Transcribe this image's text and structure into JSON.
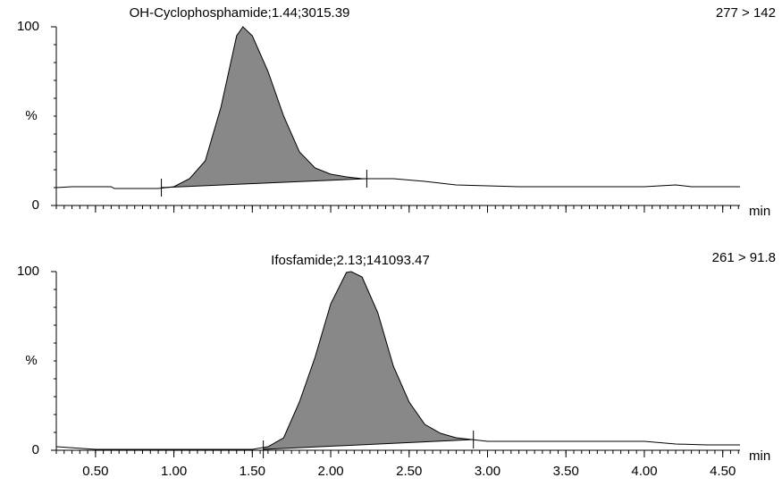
{
  "chart_data": [
    {
      "type": "line",
      "title": "OH-Cyclophosphamide;1.44;3015.39",
      "annotation": "277 > 142",
      "x_label": "min",
      "y_label": "%",
      "color": "#000000",
      "fill_color": "#888888",
      "x": [
        0.25,
        0.35,
        0.6,
        0.62,
        0.9,
        1.0,
        1.1,
        1.2,
        1.3,
        1.4,
        1.44,
        1.5,
        1.6,
        1.7,
        1.8,
        1.9,
        2.0,
        2.1,
        2.2,
        2.4,
        2.6,
        2.8,
        3.0,
        3.2,
        3.6,
        4.0,
        4.2,
        4.3,
        4.61
      ],
      "values": [
        10,
        10.5,
        10.5,
        9.5,
        9.5,
        10.5,
        15,
        25,
        55,
        95,
        100,
        95,
        75,
        50,
        30,
        21,
        17.5,
        16,
        15,
        15,
        13.5,
        11.5,
        11,
        10.5,
        10.5,
        10.5,
        11.5,
        10.5,
        10.5
      ],
      "integration": {
        "x": [
          0.92,
          2.23
        ],
        "values": [
          10,
          15
        ]
      },
      "xlim": [
        0.25,
        4.61
      ],
      "ylim": [
        0,
        100
      ],
      "yticks": [
        0,
        100
      ],
      "xticks": [
        0.5,
        1,
        1.5,
        2,
        2.5,
        3,
        3.5,
        4,
        4.5
      ]
    },
    {
      "type": "line",
      "title": "Ifosfamide;2.13;141093.47",
      "annotation": "261 > 91.8",
      "x_label": "min",
      "y_label": "%",
      "color": "#000000",
      "fill_color": "#888888",
      "x": [
        0.25,
        0.5,
        1.5,
        1.6,
        1.7,
        1.8,
        1.9,
        2.0,
        2.1,
        2.13,
        2.2,
        2.3,
        2.4,
        2.5,
        2.6,
        2.7,
        2.8,
        2.9,
        3.0,
        3.6,
        4.0,
        4.2,
        4.4,
        4.61
      ],
      "values": [
        2,
        0.5,
        0.5,
        2,
        7,
        27,
        52,
        82,
        99.5,
        100,
        97,
        77,
        47,
        27,
        14.5,
        9.5,
        7,
        6,
        5,
        5,
        5,
        3.5,
        3,
        3
      ],
      "integration": {
        "x": [
          1.57,
          2.91
        ],
        "values": [
          0.5,
          6
        ]
      },
      "xlim": [
        0.25,
        4.61
      ],
      "ylim": [
        0,
        100
      ],
      "yticks": [
        0,
        100
      ],
      "xticks": [
        {
          "value": 0.5,
          "label": "0.50"
        },
        {
          "value": 1,
          "label": "1.00"
        },
        {
          "value": 1.5,
          "label": "1.50"
        },
        {
          "value": 2,
          "label": "2.00"
        },
        {
          "value": 2.5,
          "label": "2.50"
        },
        {
          "value": 3,
          "label": "3.00"
        },
        {
          "value": 3.5,
          "label": "3.50"
        },
        {
          "value": 4,
          "label": "4.00"
        },
        {
          "value": 4.5,
          "label": "4.50"
        }
      ]
    }
  ]
}
